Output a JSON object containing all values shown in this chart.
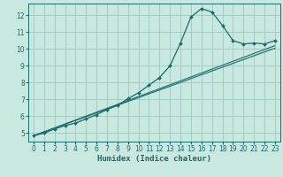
{
  "title": "",
  "xlabel": "Humidex (Indice chaleur)",
  "ylabel": "",
  "background_color": "#c8e8e0",
  "grid_color": "#a0c8c0",
  "line_color": "#1a6b6b",
  "xlim": [
    -0.5,
    23.5
  ],
  "ylim": [
    4.5,
    12.7
  ],
  "xticks": [
    0,
    1,
    2,
    3,
    4,
    5,
    6,
    7,
    8,
    9,
    10,
    11,
    12,
    13,
    14,
    15,
    16,
    17,
    18,
    19,
    20,
    21,
    22,
    23
  ],
  "yticks": [
    5,
    6,
    7,
    8,
    9,
    10,
    11,
    12
  ],
  "series1_x": [
    0,
    1,
    2,
    3,
    4,
    5,
    6,
    7,
    8,
    9,
    10,
    11,
    12,
    13,
    14,
    15,
    16,
    17,
    18,
    19,
    20,
    21,
    22,
    23
  ],
  "series1_y": [
    4.85,
    5.0,
    5.25,
    5.45,
    5.6,
    5.85,
    6.1,
    6.4,
    6.65,
    7.05,
    7.4,
    7.85,
    8.3,
    9.0,
    10.35,
    11.9,
    12.4,
    12.2,
    11.4,
    10.5,
    10.3,
    10.35,
    10.3,
    10.5
  ],
  "series2_x": [
    0,
    23
  ],
  "series2_y": [
    4.85,
    10.05
  ],
  "series3_x": [
    0,
    23
  ],
  "series3_y": [
    4.85,
    10.2
  ],
  "tick_fontsize": 5.5,
  "xlabel_fontsize": 6.5
}
